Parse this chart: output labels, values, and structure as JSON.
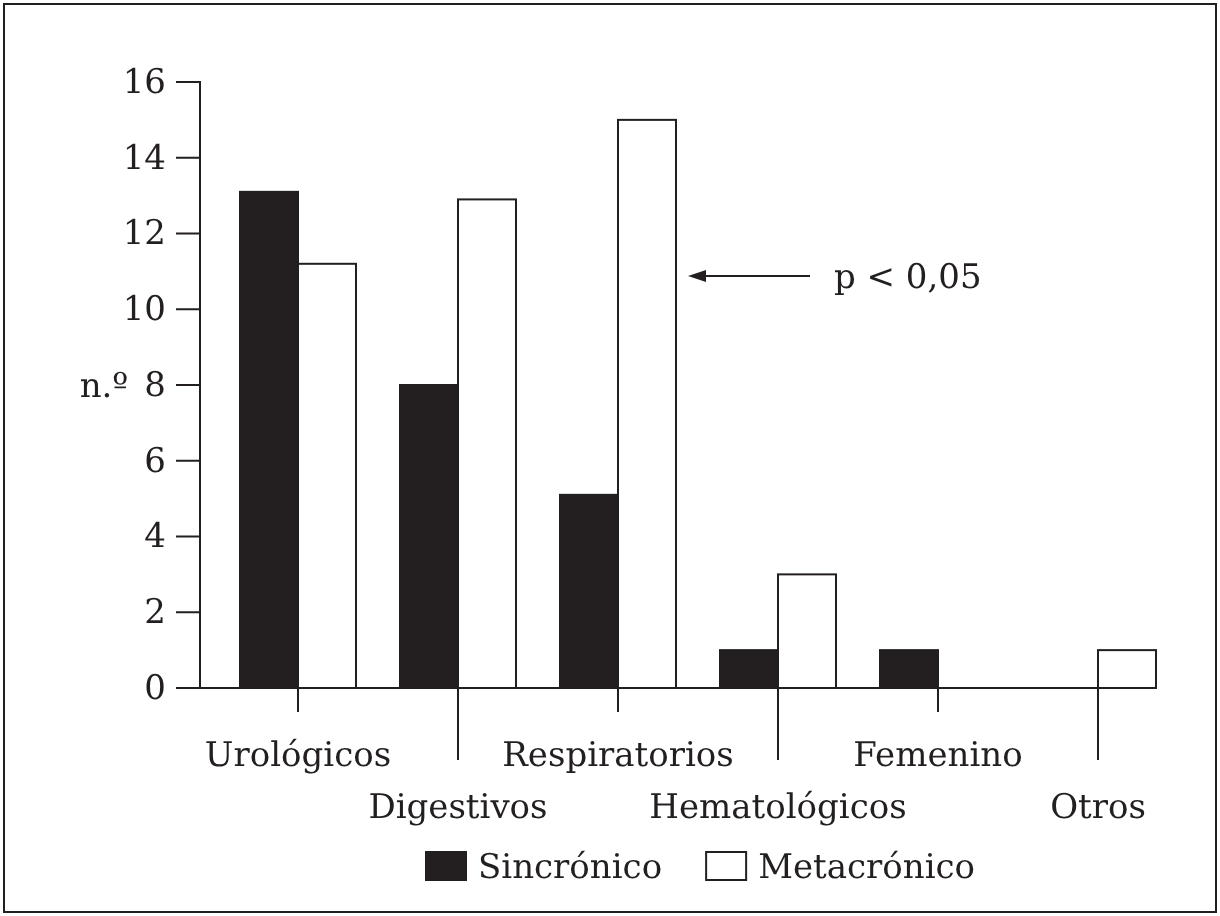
{
  "chart_data": {
    "type": "bar",
    "ylabel": "n.º",
    "categories": [
      "Urológicos",
      "Digestivos",
      "Respiratorios",
      "Hematológicos",
      "Femenino",
      "Otros"
    ],
    "series": [
      {
        "name": "Sincrónico",
        "color": "#231f20",
        "values": [
          13.1,
          8,
          5.1,
          1,
          1,
          0
        ]
      },
      {
        "name": "Metacrónico",
        "color": "#ffffff",
        "values": [
          11.2,
          12.9,
          15,
          3,
          0,
          1
        ]
      }
    ],
    "ylim": [
      0,
      16
    ],
    "yticks": [
      0,
      2,
      4,
      6,
      8,
      10,
      12,
      14,
      16
    ],
    "grid": false,
    "legend": "bottom",
    "annotations": [
      "p < 0,05"
    ]
  }
}
